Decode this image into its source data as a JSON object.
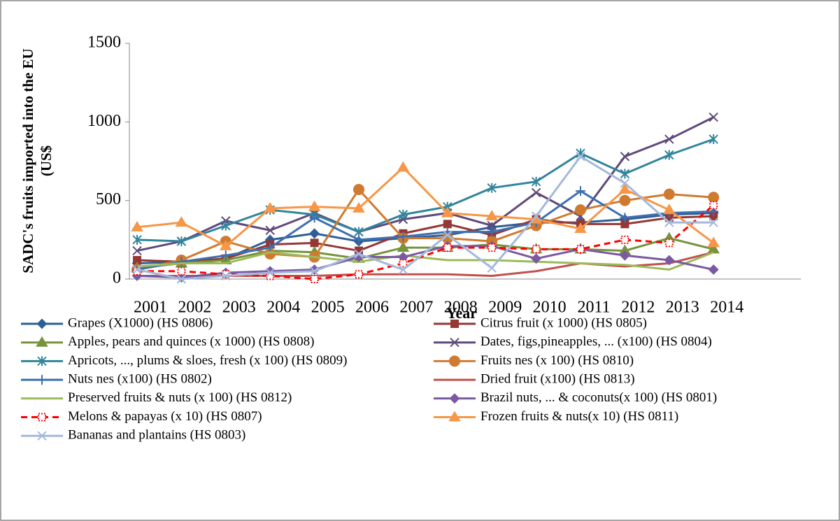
{
  "chart_data": {
    "type": "line",
    "x_label": "Year",
    "y_label": [
      "SADC's fruits imported into the EU",
      "(US$"
    ],
    "categories": [
      "2001",
      "2002",
      "2003",
      "2004",
      "2005",
      "2006",
      "2007",
      "2008",
      "2009",
      "2010",
      "2011",
      "2012",
      "2013",
      "2014"
    ],
    "ylim": [
      0,
      1500
    ],
    "yticks": [
      0,
      500,
      1000,
      1500
    ],
    "grid": false,
    "legend": "bottom",
    "series": [
      {
        "name": "Grapes (X1000) (HS 0806)",
        "color": "#2e5f94",
        "marker": "diamond",
        "values": [
          100,
          110,
          130,
          250,
          290,
          240,
          260,
          280,
          330,
          360,
          360,
          380,
          410,
          420
        ]
      },
      {
        "name": "Citrus fruit (x 1000)  (HS 0805)",
        "color": "#953735",
        "marker": "square",
        "values": [
          120,
          110,
          130,
          220,
          230,
          180,
          290,
          350,
          280,
          380,
          350,
          350,
          390,
          400
        ]
      },
      {
        "name": "Apples, pears and quinces (x 1000)  (HS 0808)",
        "color": "#77933c",
        "marker": "triangle",
        "values": [
          70,
          100,
          120,
          180,
          170,
          130,
          200,
          200,
          220,
          190,
          190,
          180,
          260,
          190
        ]
      },
      {
        "name": "Dates, figs,pineapples, ... (x100)  (HS 0804)",
        "color": "#5f497a",
        "marker": "x",
        "values": [
          180,
          240,
          370,
          310,
          420,
          300,
          380,
          420,
          340,
          550,
          400,
          780,
          890,
          1030
        ]
      },
      {
        "name": "Apricots, ..., plums & sloes, fresh (x 100)  (HS 0809)",
        "color": "#31859c",
        "marker": "star",
        "values": [
          250,
          240,
          340,
          440,
          410,
          300,
          410,
          460,
          580,
          620,
          800,
          670,
          790,
          890
        ]
      },
      {
        "name": "Fruits nes (x 100)  (HS 0810)",
        "color": "#d07a30",
        "marker": "circle",
        "values": [
          60,
          120,
          240,
          160,
          140,
          570,
          260,
          260,
          240,
          340,
          440,
          500,
          540,
          520
        ]
      },
      {
        "name": "Nuts nes (x100)  (HS 0802)",
        "color": "#3e6fb0",
        "marker": "plus",
        "values": [
          60,
          110,
          150,
          200,
          390,
          250,
          270,
          300,
          300,
          360,
          560,
          390,
          420,
          430
        ]
      },
      {
        "name": "Dried fruit (x100)  (HS 0813)",
        "color": "#c0504d",
        "marker": "none",
        "values": [
          20,
          20,
          20,
          20,
          20,
          30,
          30,
          30,
          20,
          50,
          100,
          80,
          100,
          170
        ]
      },
      {
        "name": "Preserved fruits & nuts  (x 100)  (HS 0812)",
        "color": "#9bbb59",
        "marker": "none",
        "values": [
          80,
          100,
          100,
          170,
          140,
          110,
          150,
          120,
          120,
          110,
          100,
          90,
          60,
          170
        ]
      },
      {
        "name": "Brazil nuts, ... & coconuts(x 100)  (HS 0801)",
        "color": "#7a5aa0",
        "marker": "diamond",
        "values": [
          20,
          10,
          40,
          50,
          60,
          140,
          140,
          210,
          210,
          130,
          190,
          150,
          120,
          60
        ]
      },
      {
        "name": "Melons & papayas (x 10)  (HS 0807)",
        "color": "#ff0000",
        "marker": "dotted-square",
        "line_style": "dashed",
        "values": [
          50,
          50,
          30,
          20,
          0,
          30,
          100,
          200,
          200,
          190,
          190,
          250,
          230,
          470
        ]
      },
      {
        "name": "Frozen fruits & nuts(x 10)  (HS 0811)",
        "color": "#f79646",
        "marker": "triangle",
        "values": [
          330,
          360,
          210,
          450,
          460,
          450,
          710,
          420,
          400,
          380,
          320,
          570,
          440,
          230
        ]
      },
      {
        "name": "Bananas and plantains  (HS 0803)",
        "color": "#a5b8dc",
        "marker": "x",
        "values": [
          60,
          0,
          20,
          40,
          50,
          160,
          60,
          280,
          70,
          400,
          780,
          610,
          360,
          360
        ]
      }
    ]
  }
}
